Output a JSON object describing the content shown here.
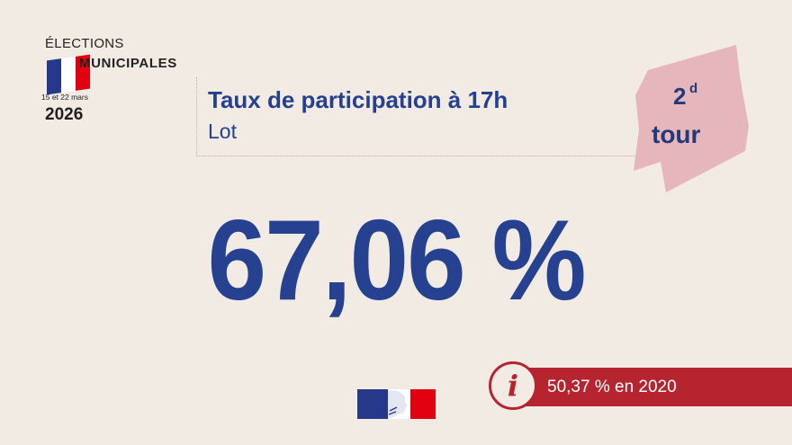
{
  "logo": {
    "title": "ÉLECTIONS",
    "subtitle": "MUNICIPALES",
    "dates": "15 et 22 mars",
    "year": "2026"
  },
  "header": {
    "title": "Taux de participation à 17h",
    "place": "Lot"
  },
  "round": {
    "number": "2",
    "superscript": "d",
    "word": "tour"
  },
  "turnout": {
    "value": "67,06 %"
  },
  "previous": {
    "text": "50,37 % en 2020",
    "icon": "info-icon",
    "icon_glyph": "i"
  },
  "colors": {
    "background": "#f1ebe3",
    "primary_blue": "#26418f",
    "accent_red": "#b5242f",
    "badge_pink": "#e6b6bd",
    "flag_blue": "#25388a",
    "flag_white": "#ffffff",
    "flag_red": "#e1000f"
  }
}
